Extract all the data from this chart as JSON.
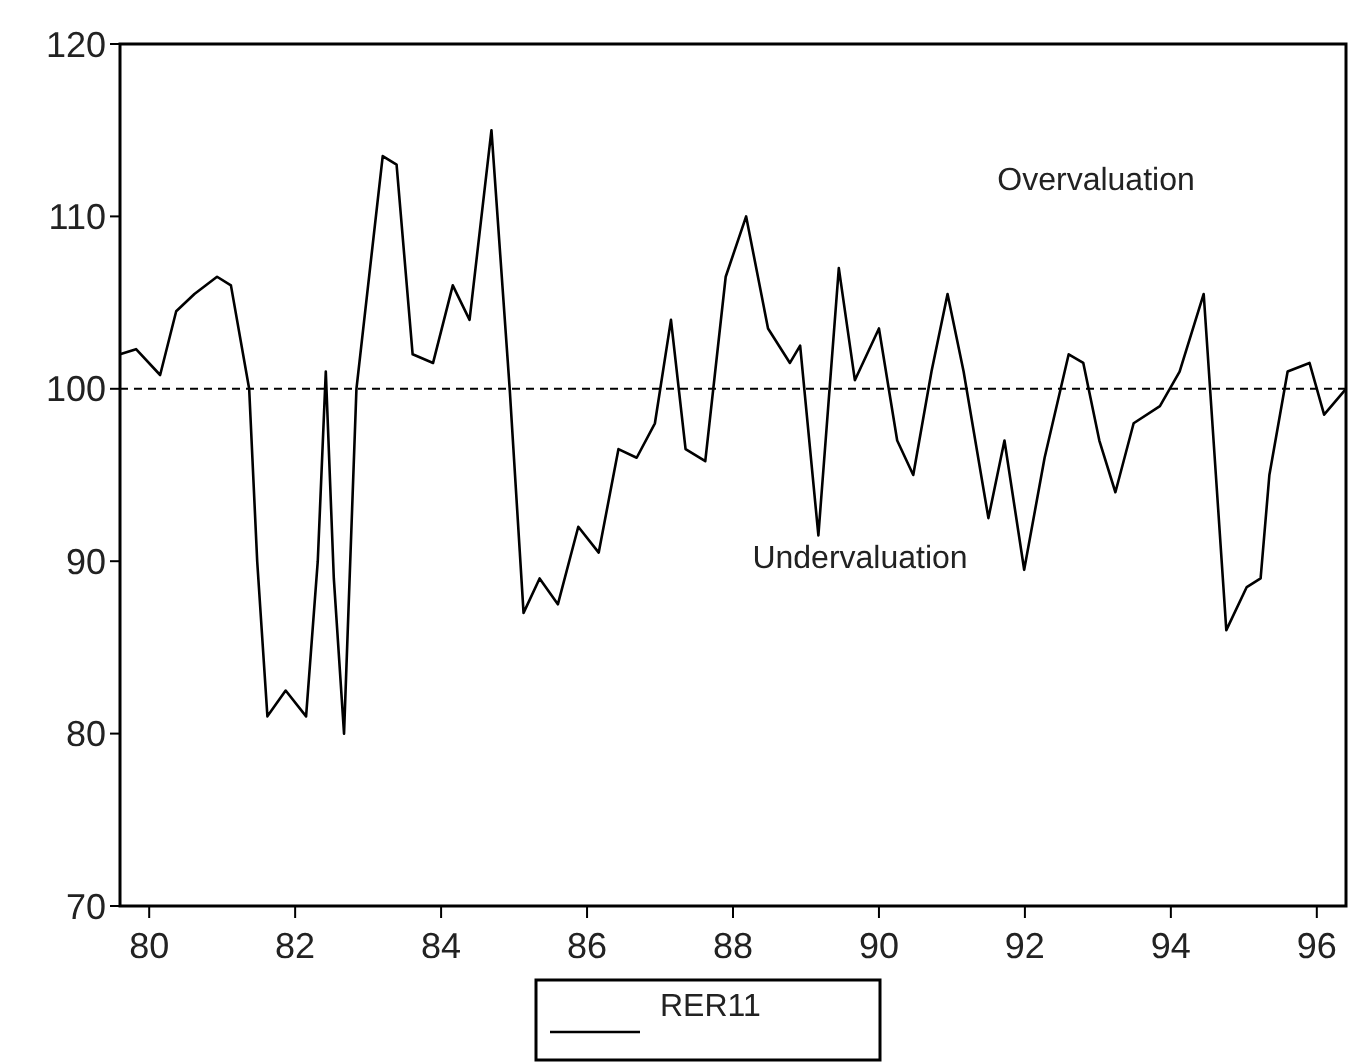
{
  "chart_data": {
    "type": "line",
    "x": [
      79.6,
      79.82,
      80.15,
      80.37,
      80.62,
      80.93,
      81.12,
      81.37,
      81.48,
      81.62,
      81.87,
      82.15,
      82.31,
      82.42,
      82.53,
      82.67,
      82.84,
      83.2,
      83.39,
      83.61,
      83.89,
      84.16,
      84.39,
      84.69,
      84.94,
      85.13,
      85.35,
      85.6,
      85.88,
      86.16,
      86.43,
      86.68,
      86.93,
      87.15,
      87.35,
      87.62,
      87.9,
      88.18,
      88.48,
      88.78,
      88.92,
      89.17,
      89.45,
      89.67,
      90.0,
      90.25,
      90.47,
      90.72,
      90.94,
      91.16,
      91.5,
      91.72,
      91.99,
      92.27,
      92.6,
      92.8,
      93.02,
      93.24,
      93.49,
      93.85,
      94.12,
      94.45,
      94.76,
      95.04,
      95.23,
      95.35,
      95.6,
      95.9,
      96.1,
      96.4
    ],
    "series": [
      {
        "name": "RER11",
        "color": "#000000",
        "values": [
          102,
          102.3,
          100.8,
          104.5,
          105.5,
          106.5,
          106,
          100,
          90,
          81,
          82.5,
          81,
          90,
          101,
          89,
          80,
          100,
          113.5,
          113,
          102,
          101.5,
          106,
          104,
          115,
          100,
          87,
          89,
          87.5,
          92,
          90.5,
          96.5,
          96,
          98,
          104,
          96.5,
          95.8,
          106.5,
          110,
          103.5,
          101.5,
          102.5,
          91.5,
          107,
          100.5,
          103.5,
          97,
          95,
          101,
          105.5,
          101,
          92.5,
          97,
          89.5,
          96,
          102,
          101.5,
          97,
          94,
          98,
          99,
          101,
          105.5,
          86,
          88.5,
          89,
          95,
          101,
          101.5,
          98.5,
          100
        ]
      }
    ],
    "xlim": [
      79.6,
      96.4
    ],
    "xticks": [
      80,
      82,
      84,
      86,
      88,
      90,
      92,
      94,
      96
    ],
    "ylim": [
      70,
      120
    ],
    "yticks": [
      70,
      80,
      90,
      100,
      110,
      120
    ],
    "ref_lines": [
      {
        "axis": "y",
        "value": 100,
        "line_style": "dashed",
        "color": "#000000"
      }
    ],
    "annotations": [
      "Overvaluation",
      "Undervaluation"
    ],
    "legend": "bottom",
    "grid": false,
    "marker": "none",
    "line_style": "solid"
  }
}
